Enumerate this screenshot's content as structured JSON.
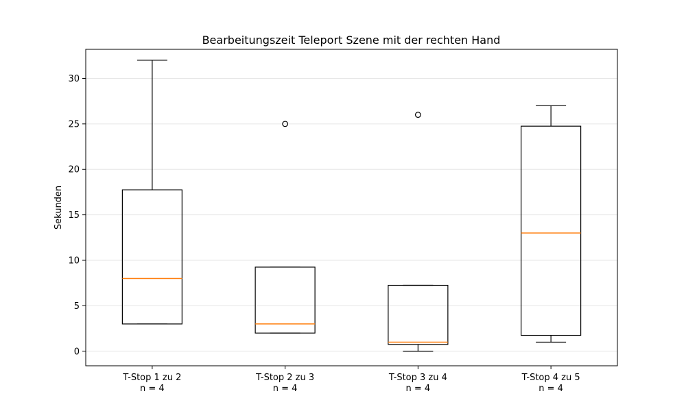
{
  "chart_data": {
    "type": "boxplot",
    "title": "Bearbeitungszeit Teleport Szene mit der rechten Hand",
    "xlabel": "",
    "ylabel": "Sekunden",
    "ylim": [
      -1.6,
      33.2
    ],
    "yticks": [
      0,
      5,
      10,
      15,
      20,
      25,
      30
    ],
    "grid": "horizontal",
    "colors": {
      "box": "#000000",
      "median": "#ff7f0e",
      "grid": "#e6e6e6"
    },
    "categories": [
      {
        "label": "T-Stop 1 zu 2",
        "n_label": "n = 4"
      },
      {
        "label": "T-Stop 2 zu 3",
        "n_label": "n = 4"
      },
      {
        "label": "T-Stop 3 zu 4",
        "n_label": "n = 4"
      },
      {
        "label": "T-Stop 4 zu 5",
        "n_label": "n = 4"
      }
    ],
    "boxes": [
      {
        "whisker_low": 3,
        "q1": 3,
        "median": 8,
        "q3": 17.75,
        "whisker_high": 32,
        "outliers": []
      },
      {
        "whisker_low": 2,
        "q1": 2,
        "median": 3,
        "q3": 9.25,
        "whisker_high": 9.25,
        "outliers": [
          25
        ]
      },
      {
        "whisker_low": 0,
        "q1": 0.75,
        "median": 1,
        "q3": 7.25,
        "whisker_high": 7.25,
        "outliers": [
          26
        ]
      },
      {
        "whisker_low": 1,
        "q1": 1.75,
        "median": 13,
        "q3": 24.75,
        "whisker_high": 27,
        "outliers": []
      }
    ]
  }
}
